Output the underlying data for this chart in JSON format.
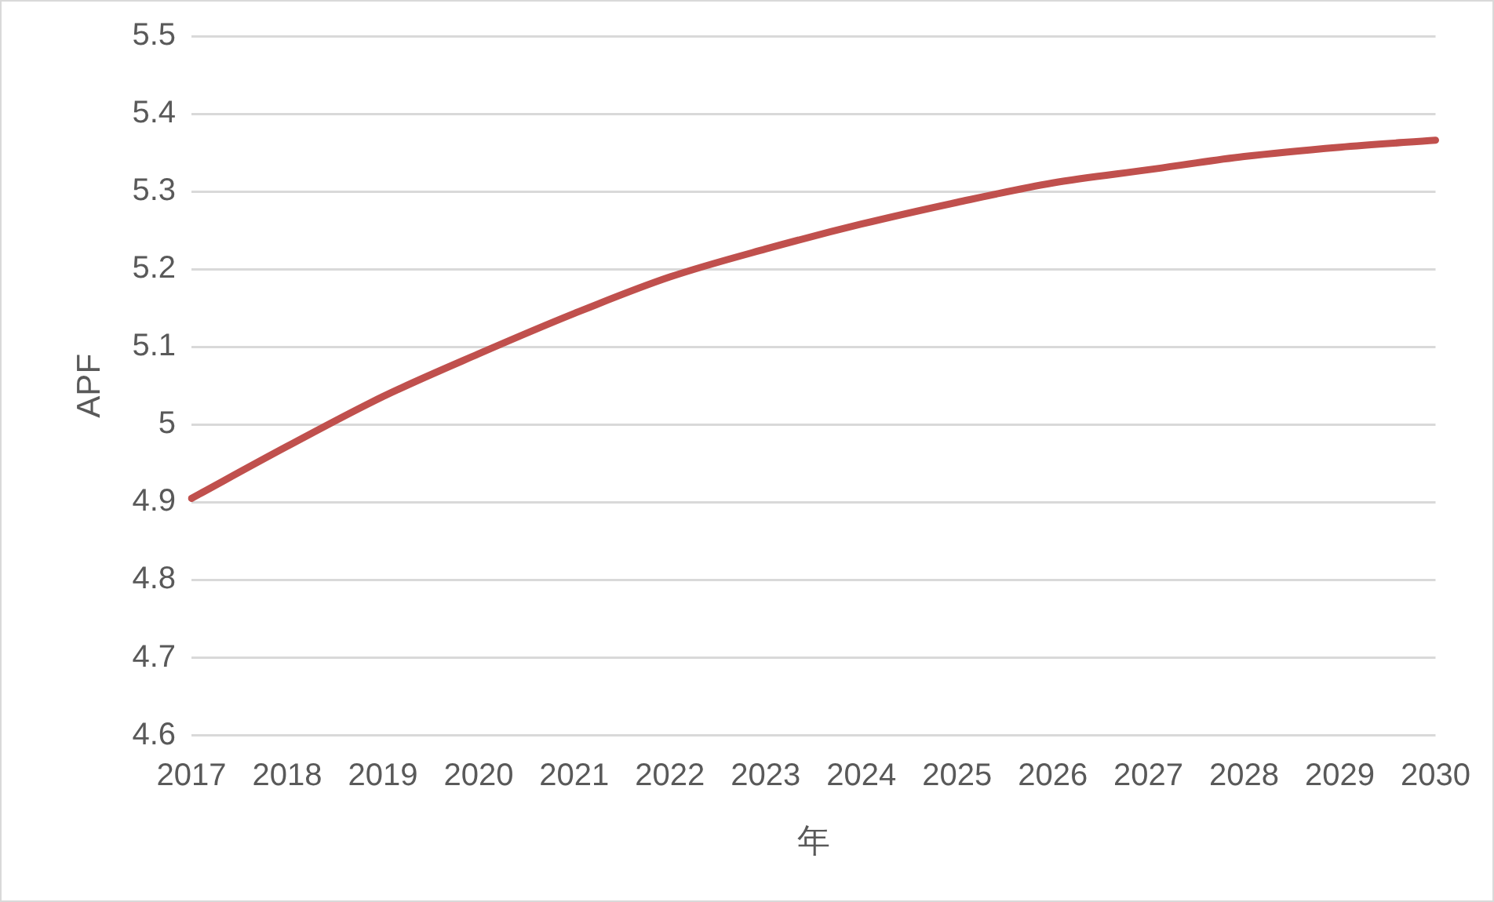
{
  "chart_data": {
    "type": "line",
    "xlabel": "年",
    "ylabel": "APF",
    "categories": [
      "2017",
      "2018",
      "2019",
      "2020",
      "2021",
      "2022",
      "2023",
      "2024",
      "2025",
      "2026",
      "2027",
      "2028",
      "2029",
      "2030"
    ],
    "series": [
      {
        "color": "#c0504d",
        "values": [
          4.905,
          4.972,
          5.036,
          5.091,
          5.143,
          5.19,
          5.226,
          5.258,
          5.286,
          5.311,
          5.328,
          5.345,
          5.357,
          5.366
        ]
      }
    ],
    "ylim": [
      4.6,
      5.5
    ],
    "yticks": [
      4.6,
      4.7,
      4.8,
      4.9,
      5,
      5.1,
      5.2,
      5.3,
      5.4,
      5.5
    ],
    "grid": "y",
    "legend": false,
    "marker": "none",
    "line_style": "solid"
  }
}
